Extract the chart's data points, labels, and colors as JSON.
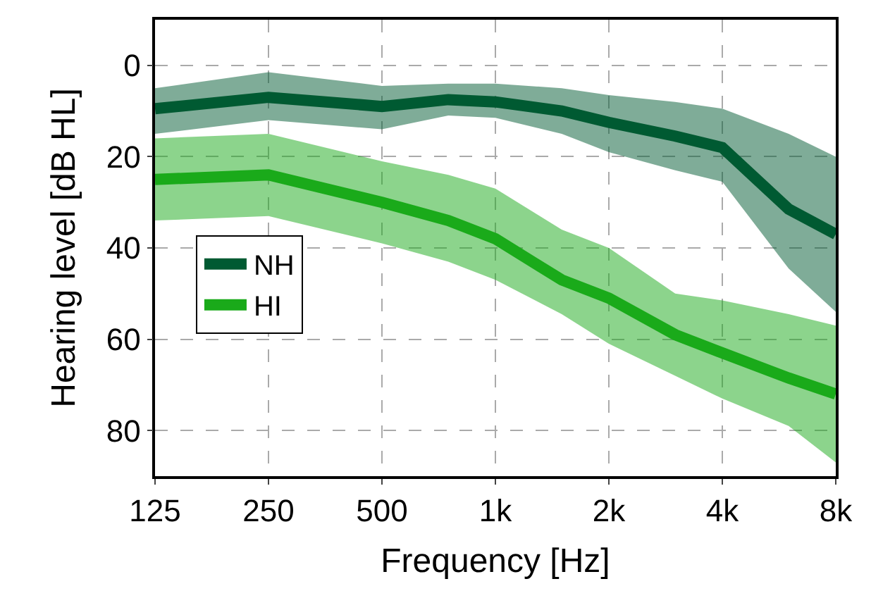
{
  "chart_data": {
    "type": "line",
    "xlabel": "Frequency [Hz]",
    "ylabel": "Hearing level [dB HL]",
    "log": "x",
    "x": [
      125,
      250,
      500,
      750,
      1000,
      1500,
      2000,
      3000,
      4000,
      6000,
      8000
    ],
    "xlim": [
      125,
      8000
    ],
    "xticks": [
      125,
      250,
      500,
      {
        "value": 1000,
        "label": "1k"
      },
      {
        "value": 2000,
        "label": "2k"
      },
      {
        "value": 4000,
        "label": "4k"
      },
      {
        "value": 8000,
        "label": "8k"
      }
    ],
    "ylim": [
      90,
      -10
    ],
    "yticks": [
      0,
      20,
      40,
      60,
      80
    ],
    "grid": true,
    "legend": "left",
    "line_style": "solid",
    "series": [
      {
        "name": "NH",
        "color": "#005a32",
        "values": [
          9.5,
          7,
          9,
          7.5,
          8,
          10,
          12.5,
          15.5,
          18,
          31.5,
          37
        ],
        "upper": [
          5,
          1.5,
          4.5,
          4,
          4,
          5,
          6.5,
          8,
          9.5,
          15,
          20
        ],
        "lower": [
          15,
          12,
          14,
          11,
          11.5,
          15,
          19,
          23,
          25.5,
          44.5,
          54
        ]
      },
      {
        "name": "HI",
        "color": "#1aaa1a",
        "values": [
          25,
          24,
          30,
          34,
          38,
          47,
          51,
          59,
          63,
          68.5,
          72
        ],
        "upper": [
          16,
          15,
          21,
          24,
          27,
          36,
          40,
          50,
          51.5,
          54.5,
          57
        ],
        "lower": [
          34,
          33,
          39,
          43,
          47,
          54.5,
          61,
          68,
          73,
          79,
          87
        ]
      }
    ]
  }
}
